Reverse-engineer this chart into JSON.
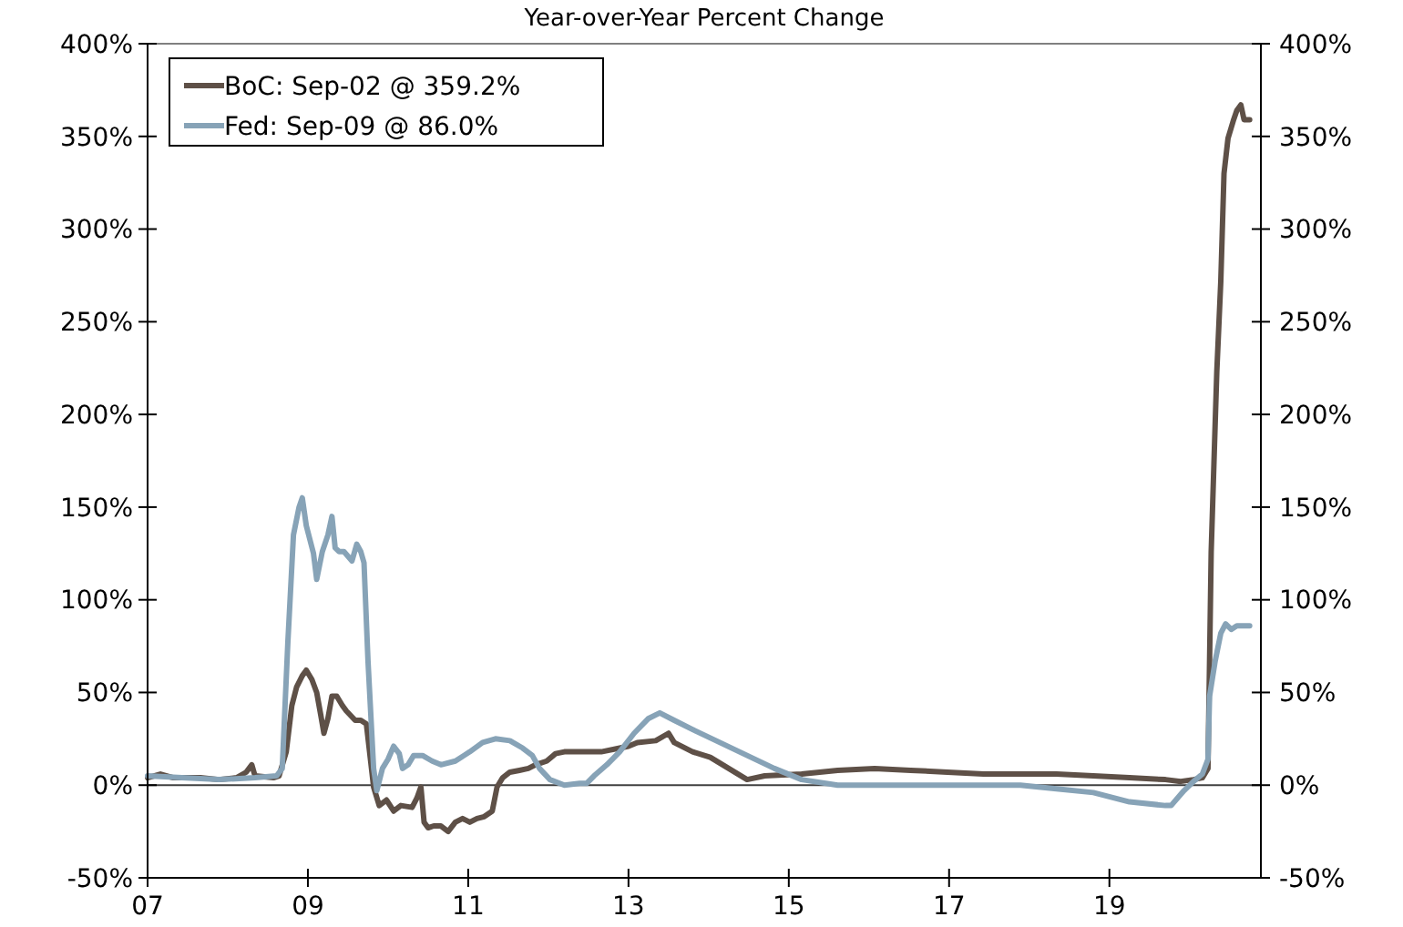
{
  "chart_data": {
    "type": "line",
    "title": "Year-over-Year Percent Change",
    "xlim": [
      2007,
      2020.89
    ],
    "xticks": [
      {
        "value": 2007,
        "label": "07"
      },
      {
        "value": 2009,
        "label": "09"
      },
      {
        "value": 2011,
        "label": "11"
      },
      {
        "value": 2013,
        "label": "13"
      },
      {
        "value": 2015,
        "label": "15"
      },
      {
        "value": 2017,
        "label": "17"
      },
      {
        "value": 2019,
        "label": "19"
      }
    ],
    "ylim": [
      -50,
      400
    ],
    "yticks": [
      {
        "value": -50,
        "label": "-50%"
      },
      {
        "value": 0,
        "label": "0%"
      },
      {
        "value": 50,
        "label": "50%"
      },
      {
        "value": 100,
        "label": "100%"
      },
      {
        "value": 150,
        "label": "150%"
      },
      {
        "value": 200,
        "label": "200%"
      },
      {
        "value": 250,
        "label": "250%"
      },
      {
        "value": 300,
        "label": "300%"
      },
      {
        "value": 350,
        "label": "350%"
      },
      {
        "value": 400,
        "label": "400%"
      }
    ],
    "y2lim": [
      -50,
      400
    ],
    "y2ticks": [
      {
        "value": -50,
        "label": "-50%"
      },
      {
        "value": 0,
        "label": "0%"
      },
      {
        "value": 50,
        "label": "50%"
      },
      {
        "value": 100,
        "label": "100%"
      },
      {
        "value": 150,
        "label": "150%"
      },
      {
        "value": 200,
        "label": "200%"
      },
      {
        "value": 250,
        "label": "250%"
      },
      {
        "value": 300,
        "label": "300%"
      },
      {
        "value": 350,
        "label": "350%"
      },
      {
        "value": 400,
        "label": "400%"
      }
    ],
    "ref_lines": [
      {
        "axis": "y",
        "value": 0,
        "color": "#404040"
      }
    ],
    "grid": false,
    "legend": "top left",
    "marker": "none",
    "line_style": "solid",
    "series": [
      {
        "name": "BoC: Sep-02 @ 359.2%",
        "color": "#5e5047",
        "x": [
          2007.0,
          2007.16,
          2007.32,
          2007.66,
          2007.89,
          2008.11,
          2008.23,
          2008.3,
          2008.34,
          2008.57,
          2008.64,
          2008.73,
          2008.8,
          2008.86,
          2008.93,
          2008.98,
          2009.05,
          2009.11,
          2009.16,
          2009.2,
          2009.25,
          2009.3,
          2009.36,
          2009.43,
          2009.48,
          2009.59,
          2009.66,
          2009.73,
          2009.82,
          2009.89,
          2009.98,
          2010.07,
          2010.16,
          2010.3,
          2010.36,
          2010.41,
          2010.45,
          2010.5,
          2010.57,
          2010.66,
          2010.75,
          2010.84,
          2010.93,
          2011.02,
          2011.11,
          2011.2,
          2011.3,
          2011.36,
          2011.43,
          2011.52,
          2011.64,
          2011.75,
          2011.84,
          2011.98,
          2012.09,
          2012.2,
          2012.43,
          2012.66,
          2012.89,
          2013.0,
          2013.11,
          2013.34,
          2013.5,
          2013.57,
          2013.8,
          2014.02,
          2014.25,
          2014.48,
          2014.7,
          2015.16,
          2015.61,
          2016.07,
          2016.52,
          2016.98,
          2017.43,
          2017.89,
          2018.34,
          2018.8,
          2019.25,
          2019.7,
          2019.89,
          2020.05,
          2020.16,
          2020.23,
          2020.27,
          2020.34,
          2020.39,
          2020.43,
          2020.48,
          2020.55,
          2020.59,
          2020.64,
          2020.68,
          2020.75
        ],
        "values": [
          4,
          6,
          4,
          4,
          3,
          4,
          7,
          11,
          5,
          4,
          5,
          18,
          43,
          53,
          59,
          62,
          57,
          50,
          38,
          28,
          36,
          48,
          48,
          43,
          40,
          35,
          35,
          33,
          -1,
          -11,
          -8,
          -14,
          -11,
          -12,
          -7,
          -1,
          -20,
          -23,
          -22,
          -22,
          -25,
          -20,
          -18,
          -20,
          -18,
          -17,
          -14,
          -1,
          4,
          7,
          8,
          9,
          11,
          13,
          17,
          18,
          18,
          18,
          20,
          21,
          23,
          24,
          28,
          23,
          18,
          15,
          9,
          3,
          5,
          6,
          8,
          9,
          8,
          7,
          6,
          6,
          6,
          5,
          4,
          3,
          2,
          3,
          4,
          9,
          126,
          223,
          272,
          330,
          349,
          359,
          364,
          367,
          359,
          359
        ]
      },
      {
        "name": "Fed: Sep-09 @ 86.0%",
        "color": "#87a3b7",
        "x": [
          2007.0,
          2007.43,
          2007.89,
          2008.34,
          2008.61,
          2008.68,
          2008.75,
          2008.82,
          2008.89,
          2008.93,
          2008.98,
          2009.07,
          2009.11,
          2009.18,
          2009.25,
          2009.3,
          2009.34,
          2009.39,
          2009.45,
          2009.55,
          2009.61,
          2009.66,
          2009.7,
          2009.75,
          2009.82,
          2009.86,
          2009.93,
          2010.0,
          2010.07,
          2010.14,
          2010.18,
          2010.25,
          2010.32,
          2010.43,
          2010.55,
          2010.66,
          2010.84,
          2011.02,
          2011.18,
          2011.34,
          2011.52,
          2011.68,
          2011.8,
          2011.89,
          2012.02,
          2012.2,
          2012.39,
          2012.48,
          2012.57,
          2012.73,
          2012.89,
          2013.07,
          2013.25,
          2013.39,
          2013.57,
          2013.8,
          2014.14,
          2014.48,
          2014.82,
          2015.16,
          2015.61,
          2016.52,
          2017.43,
          2017.89,
          2018.34,
          2018.8,
          2019.25,
          2019.7,
          2019.77,
          2019.93,
          2020.05,
          2020.16,
          2020.23,
          2020.25,
          2020.32,
          2020.39,
          2020.45,
          2020.52,
          2020.59,
          2020.75
        ],
        "values": [
          5,
          4,
          3,
          4,
          5,
          9,
          77,
          135,
          150,
          155,
          140,
          125,
          111,
          126,
          135,
          145,
          128,
          126,
          126,
          121,
          130,
          126,
          120,
          67,
          9,
          -3,
          9,
          14,
          21,
          17,
          9,
          11,
          16,
          16,
          13,
          11,
          13,
          18,
          23,
          25,
          24,
          20,
          16,
          9,
          3,
          0,
          1,
          1,
          5,
          11,
          18,
          28,
          36,
          39,
          35,
          30,
          23,
          16,
          9,
          3,
          0,
          0,
          0,
          0,
          -2,
          -4,
          -9,
          -11,
          -11,
          -3,
          2,
          6,
          14,
          48,
          67,
          82,
          87,
          84,
          86,
          86
        ]
      }
    ]
  }
}
